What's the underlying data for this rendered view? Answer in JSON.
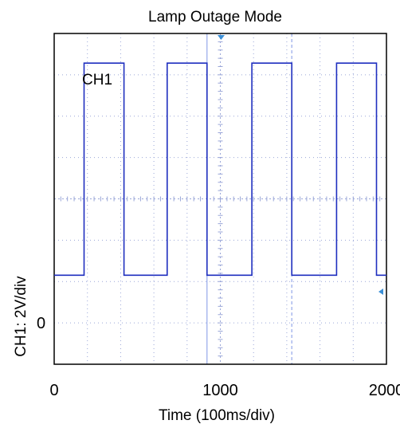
{
  "chart_data": {
    "type": "line",
    "title": "Lamp Outage Mode",
    "xlabel": "Time (100ms/div)",
    "ylabel": "CH1: 2V/div",
    "xlim": [
      0,
      2000
    ],
    "ylim": [
      -2.1,
      5.7
    ],
    "x_ticks": [
      "0",
      "1000",
      "2000"
    ],
    "x_tick_values": [
      0,
      1000,
      2000
    ],
    "y_marker_label": "0",
    "y_marker_value": 0,
    "grid": true,
    "colors": {
      "trace": "#1f2fbf",
      "grid": "#9aa6d8",
      "cursor": "#7f96e6",
      "trigger": "#3b8fd6"
    },
    "series": [
      {
        "name": "CH1",
        "x": [
          0,
          180,
          180,
          420,
          420,
          680,
          680,
          920,
          920,
          1190,
          1190,
          1430,
          1430,
          1700,
          1700,
          1940,
          1940,
          2000
        ],
        "y": [
          0,
          0,
          5.0,
          5.0,
          0,
          0,
          5.0,
          5.0,
          0,
          0,
          5.0,
          5.0,
          0,
          0,
          5.0,
          5.0,
          0,
          0
        ]
      }
    ],
    "cursors_x": [
      920,
      1430
    ]
  }
}
